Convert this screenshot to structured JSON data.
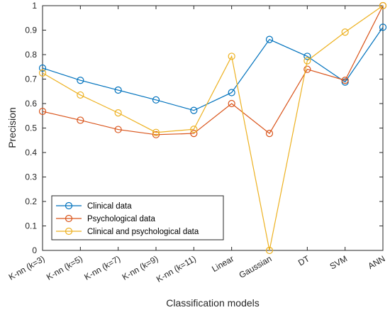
{
  "chart_data": {
    "type": "line",
    "xlabel": "Classification models",
    "ylabel": "Precision",
    "ylim": [
      0,
      1
    ],
    "yticks": [
      "0",
      "0.1",
      "0.2",
      "0.3",
      "0.4",
      "0.5",
      "0.6",
      "0.7",
      "0.8",
      "0.9",
      "1"
    ],
    "categories": [
      "K-nn (k=3)",
      "K-nn (k=5)",
      "K-nn (k=7)",
      "K-nn (k=9)",
      "K-nn (k=11)",
      "Linear",
      "Gaussian",
      "DT",
      "SVM",
      "ANN"
    ],
    "grid": false,
    "legend_position": "bottom-left",
    "series": [
      {
        "name": "Clinical data",
        "color": "#0072BD",
        "marker": "circle",
        "values": [
          0.745,
          0.695,
          0.655,
          0.615,
          0.572,
          0.645,
          0.862,
          0.793,
          0.688,
          0.912
        ]
      },
      {
        "name": "Psychological data",
        "color": "#D95319",
        "marker": "circle",
        "values": [
          0.568,
          0.532,
          0.494,
          0.473,
          0.478,
          0.6,
          0.478,
          0.74,
          0.695,
          1.0
        ]
      },
      {
        "name": "Clinical and psychological data",
        "color": "#EDB120",
        "marker": "circle",
        "values": [
          0.725,
          0.635,
          0.562,
          0.482,
          0.495,
          0.793,
          0.0,
          0.775,
          0.892,
          1.0
        ]
      }
    ]
  }
}
